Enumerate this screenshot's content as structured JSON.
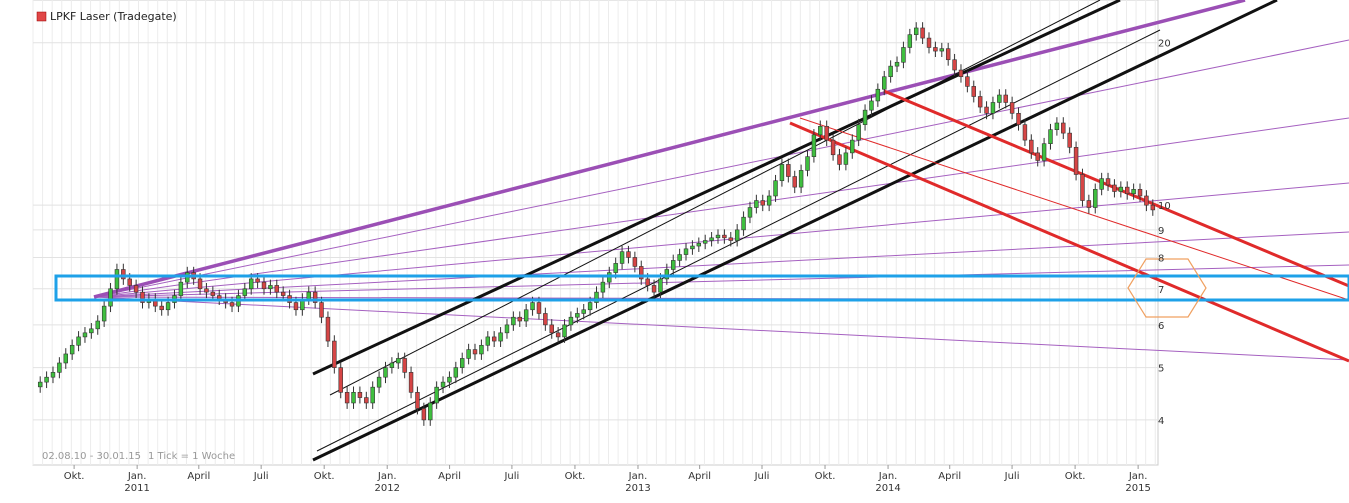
{
  "chart_data": {
    "type": "candlestick",
    "title": "LPKF Laser (Tradegate)",
    "date_range_label": "02.08.10 - 30.01.15",
    "tick_label": "1 Tick = 1 Woche",
    "y_scale": "log",
    "ylim": [
      3.3,
      24
    ],
    "y_ticks": [
      4,
      5,
      6,
      7,
      8,
      9,
      10,
      20
    ],
    "x_start": "2010-08-02",
    "x_end": "2015-01-30",
    "x_ticks": [
      {
        "date": "2010-10-01",
        "label": "Okt."
      },
      {
        "date": "2011-01-01",
        "label": "Jan."
      },
      {
        "date": "2011-04-01",
        "label": "April"
      },
      {
        "date": "2011-07-01",
        "label": "Juli"
      },
      {
        "date": "2011-10-01",
        "label": "Okt."
      },
      {
        "date": "2012-01-01",
        "label": "Jan."
      },
      {
        "date": "2012-04-01",
        "label": "April"
      },
      {
        "date": "2012-07-01",
        "label": "Juli"
      },
      {
        "date": "2012-10-01",
        "label": "Okt."
      },
      {
        "date": "2013-01-01",
        "label": "Jan."
      },
      {
        "date": "2013-04-01",
        "label": "April"
      },
      {
        "date": "2013-07-01",
        "label": "Juli"
      },
      {
        "date": "2013-10-01",
        "label": "Okt."
      },
      {
        "date": "2014-01-01",
        "label": "Jan."
      },
      {
        "date": "2014-04-01",
        "label": "April"
      },
      {
        "date": "2014-07-01",
        "label": "Juli"
      },
      {
        "date": "2014-10-01",
        "label": "Okt."
      },
      {
        "date": "2015-01-01",
        "label": "Jan."
      }
    ],
    "year_labels": [
      {
        "date": "2011-01-01",
        "label": "2011"
      },
      {
        "date": "2012-01-01",
        "label": "2012"
      },
      {
        "date": "2013-01-01",
        "label": "2013"
      },
      {
        "date": "2014-01-01",
        "label": "2014"
      },
      {
        "date": "2015-01-01",
        "label": "2015"
      }
    ],
    "closes": [
      4.7,
      4.8,
      4.9,
      5.1,
      5.3,
      5.5,
      5.7,
      5.8,
      5.9,
      6.1,
      6.5,
      7.0,
      7.6,
      7.3,
      7.1,
      6.9,
      6.6,
      6.7,
      6.5,
      6.4,
      6.6,
      6.8,
      7.2,
      7.5,
      7.3,
      7.0,
      6.9,
      6.8,
      6.7,
      6.6,
      6.5,
      6.8,
      7.0,
      7.3,
      7.2,
      7.0,
      7.1,
      6.9,
      6.8,
      6.6,
      6.4,
      6.7,
      6.9,
      6.6,
      6.2,
      5.6,
      5.0,
      4.5,
      4.3,
      4.5,
      4.4,
      4.3,
      4.6,
      4.8,
      5.0,
      5.1,
      5.2,
      4.9,
      4.5,
      4.2,
      4.0,
      4.3,
      4.6,
      4.7,
      4.8,
      5.0,
      5.2,
      5.4,
      5.3,
      5.5,
      5.7,
      5.6,
      5.8,
      6.0,
      6.2,
      6.1,
      6.4,
      6.6,
      6.3,
      6.0,
      5.8,
      5.7,
      6.0,
      6.2,
      6.3,
      6.4,
      6.6,
      6.9,
      7.2,
      7.5,
      7.8,
      8.2,
      8.0,
      7.7,
      7.3,
      7.1,
      6.9,
      7.3,
      7.6,
      7.9,
      8.1,
      8.3,
      8.4,
      8.5,
      8.6,
      8.7,
      8.8,
      8.7,
      8.6,
      9.0,
      9.5,
      9.9,
      10.2,
      10.0,
      10.4,
      11.1,
      11.9,
      11.3,
      10.8,
      11.6,
      12.3,
      13.5,
      14.0,
      13.2,
      12.4,
      11.9,
      12.5,
      13.2,
      14.1,
      15.0,
      15.6,
      16.4,
      17.3,
      18.1,
      18.4,
      19.6,
      20.7,
      21.3,
      20.4,
      19.6,
      19.3,
      19.5,
      18.6,
      17.8,
      17.3,
      16.6,
      15.9,
      15.2,
      14.8,
      15.5,
      16.0,
      15.5,
      14.8,
      14.1,
      13.2,
      12.5,
      12.1,
      13.0,
      13.8,
      14.2,
      13.6,
      12.8,
      11.4,
      10.2,
      9.9,
      10.7,
      11.2,
      10.9,
      10.6,
      10.8,
      10.5,
      10.7,
      10.4,
      10.0,
      9.8
    ],
    "grid": true,
    "legend": "top-left"
  }
}
